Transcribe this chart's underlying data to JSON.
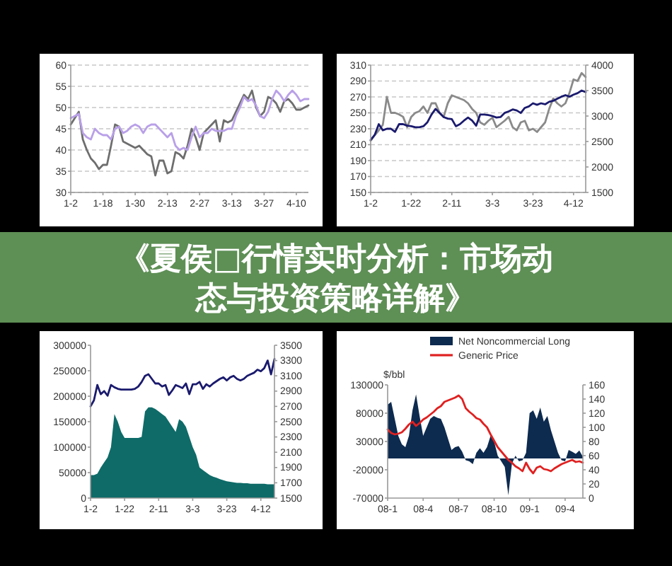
{
  "chart_data": [
    {
      "type": "line",
      "categories": [
        "1-2",
        null,
        null,
        null,
        null,
        null,
        null,
        null,
        "1-18",
        null,
        null,
        null,
        null,
        null,
        null,
        null,
        "1-30",
        null,
        null,
        null,
        null,
        null,
        null,
        null,
        "2-13",
        null,
        null,
        null,
        null,
        null,
        null,
        null,
        "2-27",
        null,
        null,
        null,
        null,
        null,
        null,
        null,
        "3-13",
        null,
        null,
        null,
        null,
        null,
        null,
        null,
        "3-27",
        null,
        null,
        null,
        null,
        null,
        null,
        null,
        "4-10",
        null,
        null,
        null
      ],
      "ylim": [
        30,
        60
      ],
      "yticks": [
        30,
        35,
        40,
        45,
        50,
        55,
        60
      ],
      "grid": "y",
      "series": [
        {
          "color": "#6e6e6e",
          "values": [
            46,
            47.5,
            49,
            42.5,
            40,
            38,
            37,
            35.5,
            36.5,
            36.5,
            41,
            46,
            45.5,
            42,
            41.5,
            41,
            40.5,
            41,
            40,
            39,
            38.5,
            34,
            37.5,
            37.5,
            34.5,
            35,
            39.5,
            39,
            38,
            41,
            45,
            43,
            40,
            44,
            45,
            46,
            47,
            42,
            47,
            46.5,
            47,
            49,
            51,
            53,
            52,
            54,
            50,
            48,
            49,
            52.5,
            52,
            51,
            49,
            51.5,
            52,
            51,
            49.5,
            49.5,
            50,
            50.5
          ]
        },
        {
          "color": "#b9a0e8",
          "values": [
            47.5,
            48,
            48.5,
            44,
            43,
            42.5,
            45,
            44,
            43.5,
            43.5,
            42.5,
            45,
            45.5,
            44,
            44.5,
            45.5,
            46,
            45.5,
            44,
            45.5,
            46,
            46,
            45,
            44,
            43,
            44,
            41,
            40,
            40.5,
            40,
            43,
            45.5,
            43,
            44,
            44,
            45,
            44.5,
            44.5,
            44.5,
            45,
            45,
            48,
            50,
            52.5,
            51.5,
            52,
            50.5,
            48,
            47.5,
            49,
            52,
            54,
            53,
            51.5,
            53,
            54,
            53,
            51.5,
            52,
            52
          ]
        }
      ]
    },
    {
      "type": "line",
      "categories": [
        "1-2",
        null,
        null,
        null,
        null,
        null,
        null,
        null,
        null,
        null,
        "1-22",
        null,
        null,
        null,
        null,
        null,
        null,
        null,
        null,
        null,
        "2-11",
        null,
        null,
        null,
        null,
        null,
        null,
        null,
        null,
        null,
        "3-3",
        null,
        null,
        null,
        null,
        null,
        null,
        null,
        null,
        null,
        "3-23",
        null,
        null,
        null,
        null,
        null,
        null,
        null,
        null,
        null,
        "4-12",
        null,
        null,
        null
      ],
      "ylim": [
        150,
        310
      ],
      "yticks": [
        150,
        170,
        190,
        210,
        230,
        250,
        270,
        290,
        310
      ],
      "y2lim": [
        1500,
        4000
      ],
      "y2ticks": [
        1500,
        2000,
        2500,
        3000,
        3500,
        4000
      ],
      "grid": "y",
      "series": [
        {
          "color": "#8a8a8a",
          "values": [
            215,
            222,
            228,
            235,
            270,
            250,
            250,
            248,
            245,
            232,
            245,
            250,
            252,
            258,
            250,
            262,
            262,
            250,
            245,
            262,
            272,
            270,
            268,
            266,
            262,
            255,
            250,
            238,
            235,
            240,
            244,
            232,
            236,
            240,
            245,
            232,
            228,
            238,
            240,
            228,
            230,
            226,
            232,
            238,
            255,
            268,
            262,
            258,
            262,
            275,
            292,
            290,
            300,
            295
          ]
        },
        {
          "color": "#1a1a6e",
          "axis": "y2",
          "values": [
            2530,
            2630,
            2840,
            2720,
            2750,
            2750,
            2690,
            2840,
            2840,
            2810,
            2800,
            2780,
            2780,
            2800,
            2880,
            3030,
            3140,
            3060,
            2980,
            2950,
            2940,
            2800,
            2840,
            2910,
            2970,
            2910,
            2810,
            3030,
            3030,
            3020,
            3000,
            2970,
            2980,
            3060,
            3090,
            3130,
            3110,
            3060,
            3160,
            3190,
            3250,
            3220,
            3250,
            3230,
            3280,
            3300,
            3340,
            3380,
            3410,
            3380,
            3420,
            3450,
            3500,
            3470
          ]
        }
      ]
    },
    {
      "type": "other",
      "title": "《夏侯□行情实时分析：市场动态与投资策略详解》"
    },
    {
      "type": "area",
      "categories": [
        "1-2",
        null,
        null,
        null,
        null,
        null,
        null,
        null,
        null,
        null,
        "1-22",
        null,
        null,
        null,
        null,
        null,
        null,
        null,
        null,
        null,
        "2-11",
        null,
        null,
        null,
        null,
        null,
        null,
        null,
        null,
        null,
        "3-3",
        null,
        null,
        null,
        null,
        null,
        null,
        null,
        null,
        null,
        "3-23",
        null,
        null,
        null,
        null,
        null,
        null,
        null,
        null,
        null,
        "4-12",
        null,
        null,
        null,
        null
      ],
      "ylim": [
        0,
        300000
      ],
      "yticks": [
        0,
        50000,
        100000,
        150000,
        200000,
        250000,
        300000
      ],
      "y2lim": [
        1500,
        3500
      ],
      "y2ticks": [
        1500,
        1700,
        1900,
        2100,
        2300,
        2500,
        2700,
        2900,
        3100,
        3300,
        3500
      ],
      "series": [
        {
          "type": "area",
          "color": "#0e6b68",
          "values": [
            45000,
            45000,
            48000,
            60000,
            70000,
            80000,
            100000,
            165000,
            150000,
            130000,
            118000,
            118000,
            118000,
            118000,
            118000,
            120000,
            170000,
            178000,
            178000,
            175000,
            170000,
            165000,
            160000,
            150000,
            140000,
            130000,
            155000,
            150000,
            140000,
            120000,
            100000,
            85000,
            60000,
            55000,
            50000,
            45000,
            42000,
            40000,
            37000,
            35000,
            33000,
            32000,
            31000,
            30000,
            30000,
            29000,
            29000,
            28000,
            28000,
            28000,
            28000,
            28000,
            27000,
            27000,
            27000
          ]
        },
        {
          "type": "line",
          "axis": "y2",
          "color": "#1a1a6e",
          "values": [
            2700,
            2780,
            2980,
            2860,
            2900,
            2840,
            2980,
            2950,
            2930,
            2920,
            2920,
            2920,
            2920,
            2930,
            2960,
            3020,
            3100,
            3120,
            3060,
            3000,
            3000,
            2960,
            2980,
            2850,
            2910,
            2980,
            2960,
            2940,
            3000,
            2860,
            2990,
            2990,
            3020,
            2930,
            2990,
            2960,
            3000,
            3030,
            3060,
            3080,
            3040,
            3080,
            3100,
            3060,
            3040,
            3060,
            3100,
            3120,
            3140,
            3180,
            3160,
            3200,
            3300,
            3120,
            3320
          ]
        }
      ]
    },
    {
      "type": "area",
      "ylabel": "$/bbl",
      "legend": "top",
      "categories": [
        "08-1",
        null,
        null,
        null,
        null,
        null,
        null,
        null,
        null,
        null,
        "08-4",
        null,
        null,
        null,
        null,
        null,
        null,
        null,
        null,
        null,
        "08-7",
        null,
        null,
        null,
        null,
        null,
        null,
        null,
        null,
        null,
        "08-10",
        null,
        null,
        null,
        null,
        null,
        null,
        null,
        null,
        null,
        "09-1",
        null,
        null,
        null,
        null,
        null,
        null,
        null,
        null,
        null,
        "09-4",
        null,
        null,
        null,
        null,
        null
      ],
      "ylim": [
        -70000,
        130000
      ],
      "yticks": [
        -70000,
        -20000,
        30000,
        80000,
        130000
      ],
      "y2lim": [
        0,
        160
      ],
      "y2ticks": [
        0,
        20,
        40,
        60,
        80,
        100,
        120,
        140,
        160
      ],
      "series": [
        {
          "type": "area",
          "name": "Net Noncommercial Long",
          "color": "#0d2a4f",
          "values": [
            95000,
            100000,
            70000,
            40000,
            25000,
            20000,
            40000,
            85000,
            113000,
            75000,
            40000,
            55000,
            70000,
            75000,
            72000,
            70000,
            55000,
            35000,
            15000,
            20000,
            22000,
            12000,
            -3000,
            -5000,
            -10000,
            10000,
            18000,
            10000,
            20000,
            40000,
            30000,
            5000,
            -5000,
            -15000,
            -65000,
            -10000,
            5000,
            -5000,
            -3000,
            10000,
            80000,
            85000,
            70000,
            90000,
            65000,
            75000,
            50000,
            30000,
            10000,
            -3000,
            -5000,
            15000,
            12000,
            8000,
            14000,
            3000
          ]
        },
        {
          "type": "line",
          "name": "Generic Price",
          "axis": "y2",
          "color": "#e02020",
          "values": [
            97,
            92,
            90,
            91,
            93,
            98,
            104,
            108,
            102,
            106,
            111,
            114,
            118,
            122,
            127,
            130,
            136,
            138,
            140,
            142,
            145,
            140,
            127,
            122,
            118,
            113,
            111,
            105,
            100,
            90,
            81,
            72,
            66,
            60,
            54,
            50,
            45,
            42,
            38,
            50,
            41,
            35,
            43,
            45,
            41,
            40,
            38,
            42,
            45,
            48,
            50,
            52,
            54,
            51,
            52,
            50
          ]
        }
      ]
    }
  ]
}
